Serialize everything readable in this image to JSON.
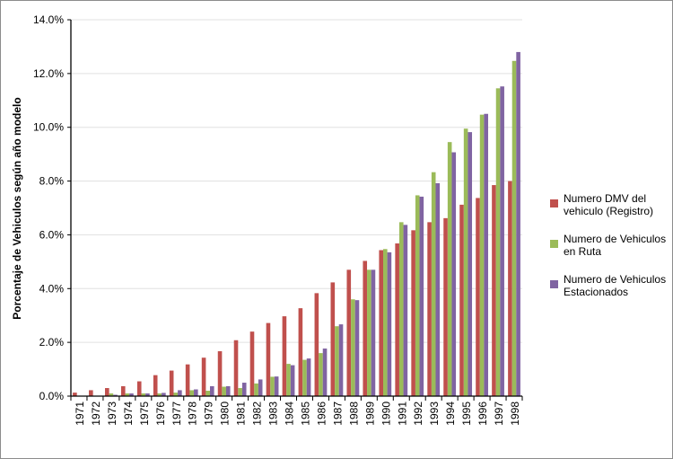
{
  "chart_data": {
    "type": "bar",
    "title": "",
    "xlabel": "",
    "ylabel": "Porcentaje de Vehiculos según año modelo",
    "ylim": [
      0,
      14
    ],
    "y_tick_format": "percent_1dp",
    "y_ticks": [
      "0.0%",
      "2.0%",
      "4.0%",
      "6.0%",
      "8.0%",
      "10.0%",
      "12.0%",
      "14.0%"
    ],
    "grid": true,
    "legend_position": "right",
    "categories": [
      "1971",
      "1972",
      "1973",
      "1974",
      "1975",
      "1976",
      "1977",
      "1978",
      "1979",
      "1980",
      "1981",
      "1982",
      "1983",
      "1984",
      "1985",
      "1986",
      "1987",
      "1988",
      "1989",
      "1990",
      "1991",
      "1992",
      "1993",
      "1994",
      "1995",
      "1996",
      "1997",
      "1998"
    ],
    "series": [
      {
        "name": "Numero DMV del vehiculo (Registro)",
        "legend_lines": [
          "Numero DMV del",
          "vehiculo (Registro)"
        ],
        "color": "#c0504d",
        "values": [
          0.13,
          0.22,
          0.3,
          0.37,
          0.55,
          0.78,
          0.95,
          1.18,
          1.43,
          1.67,
          2.08,
          2.4,
          2.72,
          2.97,
          3.27,
          3.83,
          4.23,
          4.7,
          5.03,
          5.43,
          5.68,
          6.17,
          6.47,
          6.62,
          7.12,
          7.37,
          7.85,
          8.0
        ]
      },
      {
        "name": "Numero de Vehiculos en Ruta",
        "legend_lines": [
          "Numero de Vehiculos",
          " en Ruta"
        ],
        "color": "#9bbb59",
        "values": [
          0.0,
          0.0,
          0.1,
          0.1,
          0.1,
          0.1,
          0.13,
          0.22,
          0.2,
          0.35,
          0.3,
          0.47,
          0.72,
          1.2,
          1.35,
          1.6,
          2.6,
          3.6,
          4.7,
          5.47,
          6.47,
          7.47,
          8.33,
          9.45,
          9.95,
          10.47,
          11.45,
          12.47
        ]
      },
      {
        "name": "Numero de Vehiculos Estacionados",
        "legend_lines": [
          "Numero de Vehiculos",
          "Estacionados"
        ],
        "color": "#8064a2",
        "values": [
          0.0,
          0.0,
          0.05,
          0.1,
          0.1,
          0.12,
          0.22,
          0.25,
          0.37,
          0.37,
          0.5,
          0.62,
          0.73,
          1.15,
          1.4,
          1.77,
          2.67,
          3.57,
          4.7,
          5.35,
          6.37,
          7.42,
          7.92,
          9.07,
          9.82,
          10.5,
          11.52,
          12.8
        ]
      }
    ]
  }
}
